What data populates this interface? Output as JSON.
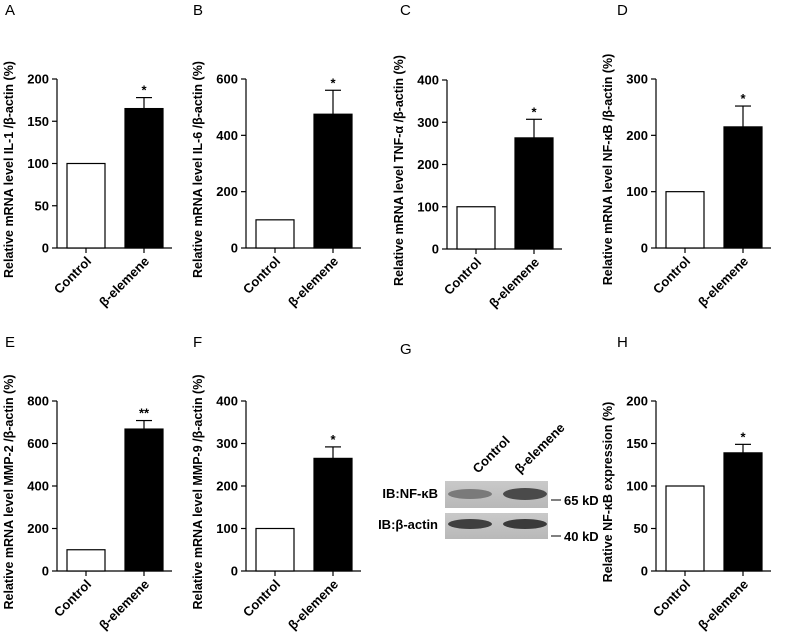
{
  "chart_data": [
    {
      "type": "bar",
      "panel": "A",
      "ylabel": "Relative mRNA level IL-1 /β-actin (%)",
      "categories": [
        "Control",
        "β-elemene"
      ],
      "values": [
        100,
        165
      ],
      "errors": [
        null,
        13
      ],
      "annotations": [
        null,
        "*"
      ],
      "colors": [
        "#ffffff",
        "#000000"
      ],
      "ylim": [
        0,
        200
      ],
      "yticks": [
        0,
        50,
        100,
        150,
        200
      ]
    },
    {
      "type": "bar",
      "panel": "B",
      "ylabel": "Relative mRNA level IL-6 /β-actin (%)",
      "categories": [
        "Control",
        "β-elemene"
      ],
      "values": [
        100,
        475
      ],
      "errors": [
        null,
        85
      ],
      "annotations": [
        null,
        "*"
      ],
      "colors": [
        "#ffffff",
        "#000000"
      ],
      "ylim": [
        0,
        600
      ],
      "yticks": [
        0,
        200,
        400,
        600
      ]
    },
    {
      "type": "bar",
      "panel": "C",
      "ylabel": "Relative mRNA level TNF-α /β-actin (%)",
      "categories": [
        "Control",
        "β-elemene"
      ],
      "values": [
        100,
        263
      ],
      "errors": [
        null,
        44
      ],
      "annotations": [
        null,
        "*"
      ],
      "colors": [
        "#ffffff",
        "#000000"
      ],
      "ylim": [
        0,
        400
      ],
      "yticks": [
        0,
        100,
        200,
        300,
        400
      ]
    },
    {
      "type": "bar",
      "panel": "D",
      "ylabel": "Relative mRNA level NF-κB /β-actin (%)",
      "categories": [
        "Control",
        "β-elemene"
      ],
      "values": [
        100,
        215
      ],
      "errors": [
        null,
        37
      ],
      "annotations": [
        null,
        "*"
      ],
      "colors": [
        "#ffffff",
        "#000000"
      ],
      "ylim": [
        0,
        300
      ],
      "yticks": [
        0,
        100,
        200,
        300
      ]
    },
    {
      "type": "bar",
      "panel": "E",
      "ylabel": "Relative mRNA level MMP-2 /β-actin (%)",
      "categories": [
        "Control",
        "β-elemene"
      ],
      "values": [
        100,
        668
      ],
      "errors": [
        null,
        40
      ],
      "annotations": [
        null,
        "**"
      ],
      "colors": [
        "#ffffff",
        "#000000"
      ],
      "ylim": [
        0,
        800
      ],
      "yticks": [
        0,
        200,
        400,
        600,
        800
      ]
    },
    {
      "type": "bar",
      "panel": "F",
      "ylabel": "Relative mRNA level MMP-9 /β-actin (%)",
      "categories": [
        "Control",
        "β-elemene"
      ],
      "values": [
        100,
        265
      ],
      "errors": [
        null,
        27
      ],
      "annotations": [
        null,
        "*"
      ],
      "colors": [
        "#ffffff",
        "#000000"
      ],
      "ylim": [
        0,
        400
      ],
      "yticks": [
        0,
        100,
        200,
        300,
        400
      ]
    },
    {
      "type": "bar",
      "panel": "H",
      "ylabel": "Relative NF-κB expression (%)",
      "categories": [
        "Control",
        "β-elemene"
      ],
      "values": [
        100,
        139
      ],
      "errors": [
        null,
        10
      ],
      "annotations": [
        null,
        "*"
      ],
      "colors": [
        "#ffffff",
        "#000000"
      ],
      "ylim": [
        0,
        200
      ],
      "yticks": [
        0,
        50,
        100,
        150,
        200
      ]
    }
  ],
  "blot": {
    "panel": "G",
    "lanes": [
      "Control",
      "β-elemene"
    ],
    "rows": [
      {
        "label": "IB:NF-κB",
        "marker": "65 kD"
      },
      {
        "label": "IB:β-actin",
        "marker": "40 kD"
      }
    ]
  }
}
